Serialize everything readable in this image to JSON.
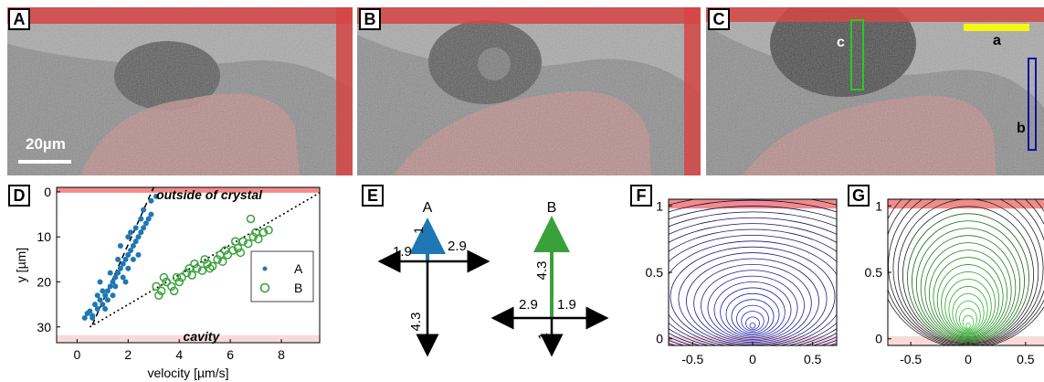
{
  "panels": {
    "A": "A",
    "B": "B",
    "C": "C",
    "D": "D",
    "E": "E",
    "F": "F",
    "G": "G"
  },
  "scale_bar": "20µm",
  "roi_labels": {
    "a": "a",
    "b": "b",
    "c": "c"
  },
  "colors": {
    "crystal": "#e06666",
    "cavity": "#f5d0d0",
    "seriesA": "#1f77b4",
    "seriesB": "#3aa13a",
    "roiA": "#ffff00",
    "roiB": "#1010a0",
    "roiC": "#22cc22"
  },
  "chart_data": [
    {
      "type": "scatter",
      "xlabel": "velocity [µm/s]",
      "ylabel": "y [µm]",
      "xlim": [
        -0.8,
        9.5
      ],
      "ylim": [
        33.5,
        -1
      ],
      "xticks": [
        "0",
        "2",
        "4",
        "6",
        "8"
      ],
      "yticks": [
        "0",
        "10",
        "20",
        "30"
      ],
      "annotations": {
        "top": "outside of crystal",
        "bottom": "cavity"
      },
      "legend": {
        "placement": "right",
        "entries": [
          "A",
          "B"
        ]
      },
      "series": [
        {
          "name": "A",
          "marker": "dot",
          "fit": "dashed",
          "points": [
            [
              0.3,
              28
            ],
            [
              0.4,
              27
            ],
            [
              0.5,
              26.5
            ],
            [
              0.6,
              27.5
            ],
            [
              0.7,
              25
            ],
            [
              0.8,
              26
            ],
            [
              0.9,
              24
            ],
            [
              1.0,
              25
            ],
            [
              1.1,
              23
            ],
            [
              1.2,
              22
            ],
            [
              1.3,
              21
            ],
            [
              1.2,
              24
            ],
            [
              1.4,
              20
            ],
            [
              1.5,
              19
            ],
            [
              1.6,
              18
            ],
            [
              1.5,
              21
            ],
            [
              1.7,
              17
            ],
            [
              1.8,
              16
            ],
            [
              1.9,
              15
            ],
            [
              2.0,
              14
            ],
            [
              2.1,
              13
            ],
            [
              2.2,
              12
            ],
            [
              1.8,
              19
            ],
            [
              2.3,
              11
            ],
            [
              2.4,
              10
            ],
            [
              2.5,
              9
            ],
            [
              2.0,
              17
            ],
            [
              2.6,
              8
            ],
            [
              2.7,
              7
            ],
            [
              2.2,
              15
            ],
            [
              2.8,
              6
            ],
            [
              2.9,
              5
            ],
            [
              1.0,
              22
            ],
            [
              1.3,
              18
            ],
            [
              0.8,
              23
            ],
            [
              1.6,
              15
            ],
            [
              2.0,
              10
            ],
            [
              2.3,
              8
            ],
            [
              2.6,
              4
            ],
            [
              2.9,
              2
            ],
            [
              3.1,
              1
            ],
            [
              1.1,
              26
            ],
            [
              0.6,
              28
            ],
            [
              1.4,
              23
            ],
            [
              1.9,
              20
            ],
            [
              2.4,
              14
            ],
            [
              1.7,
              12
            ],
            [
              2.1,
              9
            ],
            [
              0.9,
              20
            ],
            [
              2.5,
              6
            ]
          ]
        },
        {
          "name": "B",
          "marker": "ring",
          "fit": "dotted",
          "points": [
            [
              3.1,
              21
            ],
            [
              3.3,
              22
            ],
            [
              3.5,
              20
            ],
            [
              3.7,
              21
            ],
            [
              3.9,
              19
            ],
            [
              4.1,
              19
            ],
            [
              4.3,
              18
            ],
            [
              4.5,
              18.5
            ],
            [
              4.7,
              17
            ],
            [
              4.9,
              17.5
            ],
            [
              5.1,
              16
            ],
            [
              5.3,
              16.5
            ],
            [
              5.5,
              15
            ],
            [
              5.7,
              15.5
            ],
            [
              5.9,
              14
            ],
            [
              6.1,
              13
            ],
            [
              6.3,
              12.5
            ],
            [
              6.5,
              11
            ],
            [
              6.7,
              11.5
            ],
            [
              6.9,
              10
            ],
            [
              7.1,
              10.5
            ],
            [
              7.3,
              9
            ],
            [
              7.5,
              8.5
            ],
            [
              6.8,
              6
            ],
            [
              3.4,
              19
            ],
            [
              4.0,
              20
            ],
            [
              4.6,
              16
            ],
            [
              5.2,
              17
            ],
            [
              5.8,
              13
            ],
            [
              6.4,
              13.5
            ],
            [
              7.0,
              9
            ],
            [
              3.2,
              23
            ],
            [
              3.8,
              22
            ],
            [
              4.4,
              17
            ],
            [
              5.0,
              15
            ],
            [
              5.6,
              14
            ],
            [
              6.2,
              11
            ]
          ]
        }
      ]
    },
    {
      "type": "line",
      "xticks": [
        "-0.5",
        "0",
        "0.5"
      ],
      "yticks": [
        "0",
        "0.5",
        "1"
      ],
      "xlim": [
        -0.7,
        0.7
      ],
      "ylim": [
        -0.05,
        1.05
      ]
    },
    {
      "type": "line",
      "xticks": [
        "-0.5",
        "0",
        "0.5"
      ],
      "yticks": [
        "0",
        "0.5",
        "1"
      ],
      "xlim": [
        -0.7,
        0.7
      ],
      "ylim": [
        -0.05,
        1.05
      ]
    }
  ],
  "velocity_diagrams": [
    {
      "name": "A",
      "up": "1",
      "left": "1.9",
      "right": "2.9",
      "down": "4.3"
    },
    {
      "name": "B",
      "up": "4.3",
      "left": "2.9",
      "right": "1.9",
      "down": "1"
    }
  ]
}
